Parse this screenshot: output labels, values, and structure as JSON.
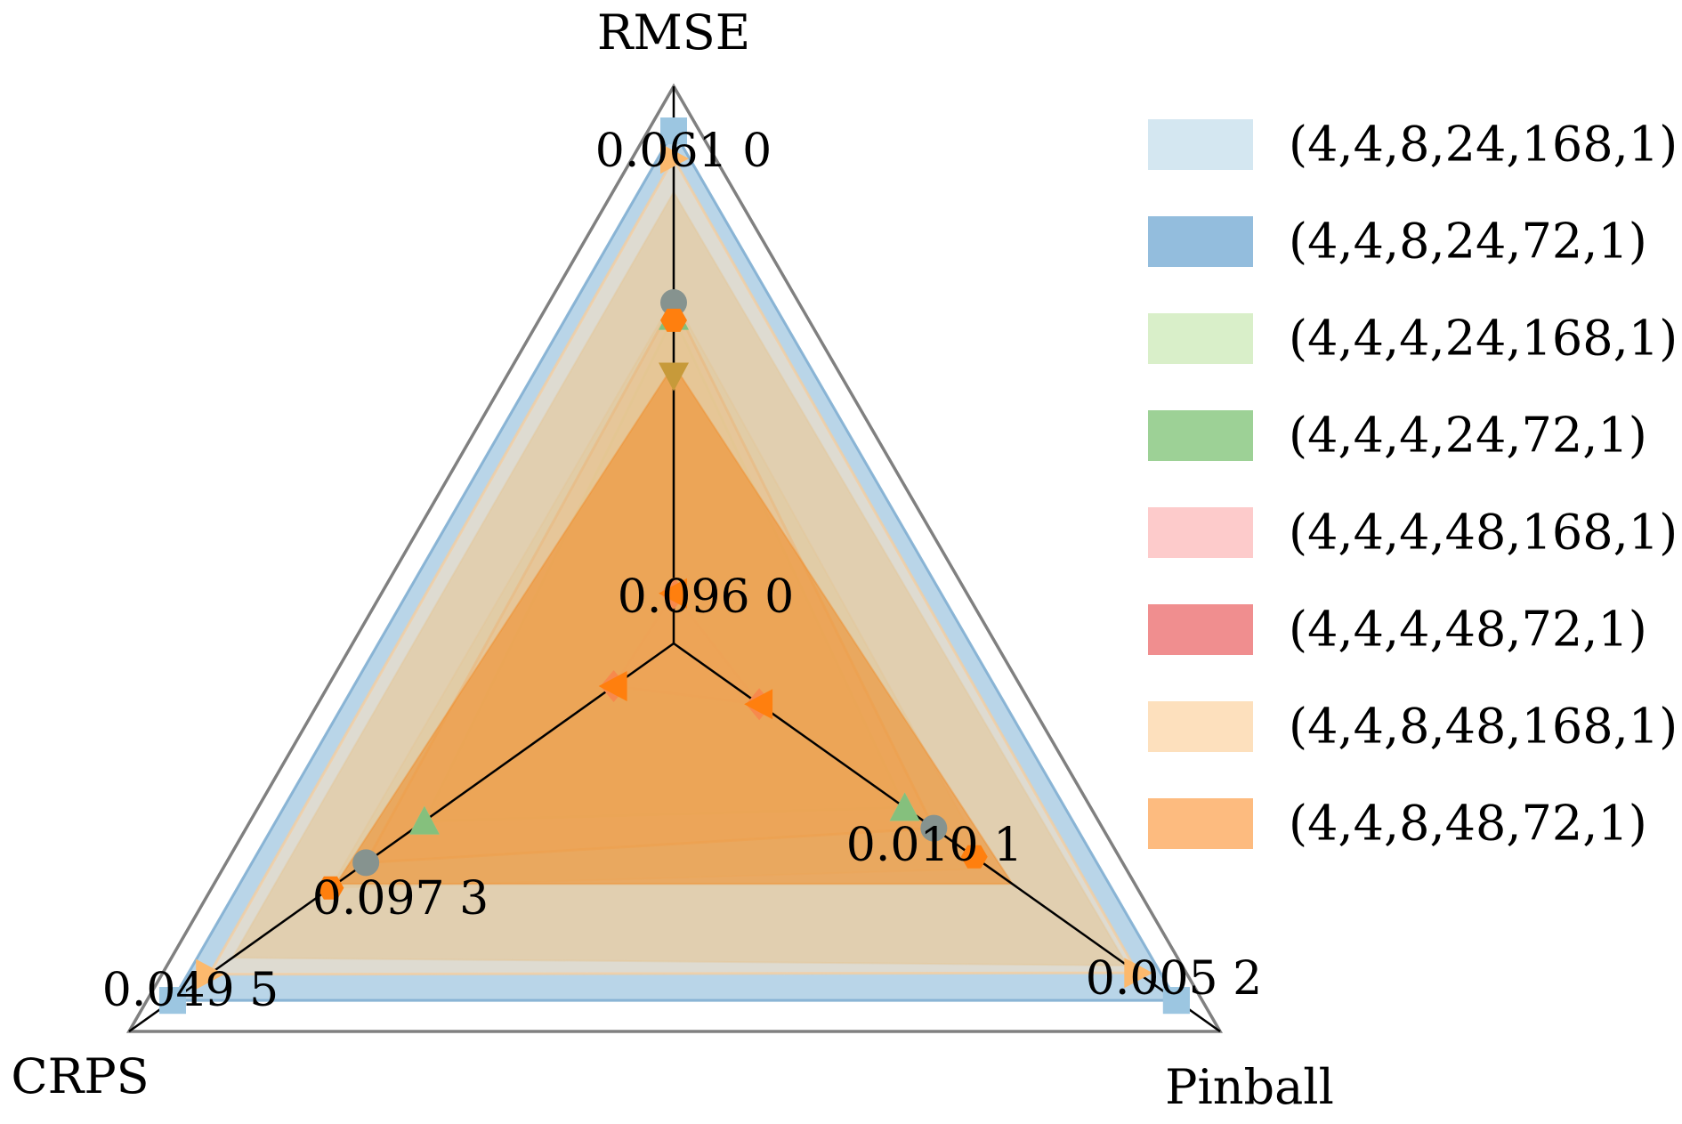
{
  "chart_data": {
    "type": "radar",
    "axes": [
      {
        "name": "RMSE",
        "best": 0.061,
        "worst": 0.096
      },
      {
        "name": "Pinball",
        "best": 0.0052,
        "worst": 0.0101
      },
      {
        "name": "CRPS",
        "best": 0.0495,
        "worst": 0.0973
      }
    ],
    "axis_value_labels": {
      "RMSE": {
        "best": "0.061 0",
        "worst": "0.096 0"
      },
      "Pinball": {
        "best": "0.005 2",
        "worst": "0.010 1"
      },
      "CRPS": {
        "best": "0.049 5",
        "worst": "0.097 3"
      }
    },
    "series": [
      {
        "name": "(4,4,8,24,168,1)",
        "color": "#d4e7f1",
        "edge": "#b9d4e4",
        "marker": "square",
        "values": [
          0.061,
          0.0052,
          0.0495
        ]
      },
      {
        "name": "(4,4,8,24,72,1)",
        "color": "#93bddd",
        "edge": "#7aa9cf",
        "marker": "square",
        "values": [
          0.061,
          0.0052,
          0.0495
        ]
      },
      {
        "name": "(4,4,4,24,168,1)",
        "color": "#d9efc9",
        "edge": "#c2e0ac",
        "marker": "triangle-up",
        "values": [
          0.0744,
          0.008,
          0.0749
        ]
      },
      {
        "name": "(4,4,4,24,72,1)",
        "color": "#9dd196",
        "edge": "#85c07d",
        "marker": "triangle-up",
        "values": [
          0.0744,
          0.008,
          0.0749
        ]
      },
      {
        "name": "(4,4,4,48,168,1)",
        "color": "#fdcbcb",
        "edge": "#f3b2b2",
        "marker": "diamond",
        "values": [
          0.0944,
          0.0095,
          0.094
        ]
      },
      {
        "name": "(4,4,4,48,72,1)",
        "color": "#f08e8f",
        "edge": "#e27374",
        "marker": "triangle-left",
        "values": [
          0.0944,
          0.0095,
          0.094
        ]
      },
      {
        "name": "(4,4,8,48,168,1)",
        "color": "#fde0bd",
        "edge": "#f5cc9c",
        "marker": "triangle-right",
        "values": [
          0.063,
          0.0056,
          0.0532
        ]
      },
      {
        "name": "(4,4,8,48,72,1)",
        "color": "#fdbb7f",
        "edge": "#f4a55f",
        "marker": "circle",
        "values": [
          0.0734,
          0.0077,
          0.069
        ]
      }
    ],
    "legend": {
      "position": "right"
    }
  },
  "colors": {
    "frame": "#808080",
    "axis": "#000000",
    "tint": "#e3c596",
    "core": "#f08a25",
    "marker_gray": "#86938f",
    "marker_orange": "#ff7f0e"
  }
}
